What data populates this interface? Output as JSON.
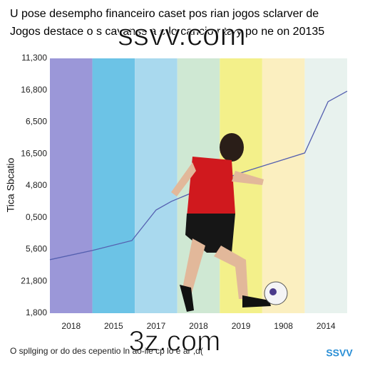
{
  "chart_data": {
    "type": "line",
    "title": "U pose desempho financeiro caset pos rian jogos sclarver de",
    "subtitle": "Jogos destace o s cavanss a c lo cancio r ta y po ne on 20135",
    "y_label": "Tica Sbcatio",
    "categories": [
      "2018",
      "2015",
      "2017",
      "2018",
      "2019",
      "1908",
      "2014"
    ],
    "band_colors": [
      "#9b97d8",
      "#6cc3e6",
      "#a9d9ee",
      "#cfe8d3",
      "#f3f08a",
      "#fbefc0",
      "#e8f2ee"
    ],
    "y_axis_labels": [
      "1,800",
      "21,800",
      "5,600",
      "0,500",
      "4,800",
      "16,500",
      "6,500",
      "16,800",
      "11,300"
    ],
    "ylim": [
      0,
      8
    ],
    "xlim": [
      0,
      7
    ],
    "series": [
      {
        "name": "line",
        "color": "#5560b0",
        "x": [
          0,
          1,
          1.93,
          2.5,
          2.86,
          4.39,
          6.0,
          6.55,
          7
        ],
        "values": [
          1.68,
          1.97,
          2.28,
          3.24,
          3.51,
          4.36,
          5.03,
          6.64,
          6.97
        ]
      }
    ],
    "footer": "O spllging or do des cepentio ln ao-ile cp lo e ar ,d(",
    "watermarks": [
      "ssvv.com",
      "3z.com",
      "SSVV"
    ]
  }
}
